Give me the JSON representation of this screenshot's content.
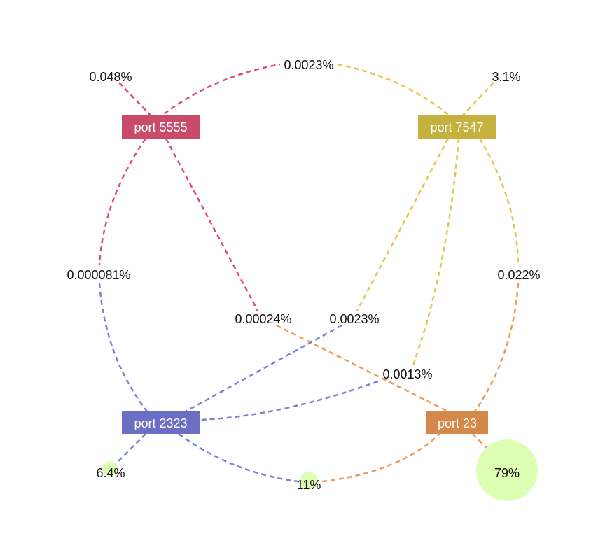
{
  "colors": {
    "p5555": "#c84b69",
    "p7547": "#c5b23e",
    "p2323": "#6b6fc4",
    "p23": "#d4894a",
    "edge5555": "#e04a77",
    "edge7547": "#ebc34a",
    "edge2323": "#7a82d2",
    "edge23": "#ef9a58",
    "bubble": "#dcffb4"
  },
  "nodes": [
    {
      "id": "p5555",
      "label": "port 5555"
    },
    {
      "id": "p7547",
      "label": "port 7547"
    },
    {
      "id": "p2323",
      "label": "port 2323"
    },
    {
      "id": "p23",
      "label": "port 23"
    }
  ],
  "bubbles": [
    {
      "id": "b5555",
      "node": "p5555",
      "label": "0.048%",
      "value": 0.048
    },
    {
      "id": "b7547",
      "node": "p7547",
      "label": "3.1%",
      "value": 3.1
    },
    {
      "id": "b2323",
      "node": "p2323",
      "label": "6.4%",
      "value": 6.4
    },
    {
      "id": "b2323_23",
      "nodes": [
        "p2323",
        "p23"
      ],
      "label": "11%",
      "value": 11
    },
    {
      "id": "b23",
      "node": "p23",
      "label": "79%",
      "value": 79
    }
  ],
  "links": [
    {
      "id": "l5555_7547",
      "from": "p5555",
      "to": "p7547",
      "label": "0.0023%",
      "value": 0.0023
    },
    {
      "id": "l5555_2323",
      "from": "p5555",
      "to": "p2323",
      "label": "0.000081%",
      "value": 8.1e-05
    },
    {
      "id": "l5555_23",
      "from": "p5555",
      "to": "p23",
      "label": "0.00024%",
      "value": 0.00024
    },
    {
      "id": "l7547_2323",
      "from": "p7547",
      "to": "p2323",
      "label": "0.0023%",
      "value": 0.0023
    },
    {
      "id": "l7547_2323b",
      "from": "p7547",
      "to": "p2323",
      "label": "0.0013%",
      "value": 0.0013
    },
    {
      "id": "l7547_23",
      "from": "p7547",
      "to": "p23",
      "label": "0.022%",
      "value": 0.022
    }
  ]
}
